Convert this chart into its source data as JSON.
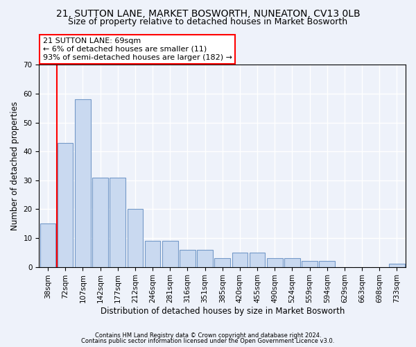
{
  "title1": "21, SUTTON LANE, MARKET BOSWORTH, NUNEATON, CV13 0LB",
  "title2": "Size of property relative to detached houses in Market Bosworth",
  "xlabel": "Distribution of detached houses by size in Market Bosworth",
  "ylabel": "Number of detached properties",
  "categories": [
    "38sqm",
    "72sqm",
    "107sqm",
    "142sqm",
    "177sqm",
    "212sqm",
    "246sqm",
    "281sqm",
    "316sqm",
    "351sqm",
    "385sqm",
    "420sqm",
    "455sqm",
    "490sqm",
    "524sqm",
    "559sqm",
    "594sqm",
    "629sqm",
    "663sqm",
    "698sqm",
    "733sqm"
  ],
  "values": [
    15,
    43,
    58,
    31,
    31,
    20,
    9,
    9,
    6,
    6,
    3,
    5,
    5,
    3,
    3,
    2,
    2,
    0,
    0,
    0,
    1
  ],
  "bar_color": "#c9d9f0",
  "bar_edge_color": "#7499c8",
  "annotation_text_line1": "21 SUTTON LANE: 69sqm",
  "annotation_text_line2": "← 6% of detached houses are smaller (11)",
  "annotation_text_line3": "93% of semi-detached houses are larger (182) →",
  "annotation_box_color": "white",
  "annotation_box_edge_color": "red",
  "ylim": [
    0,
    70
  ],
  "yticks": [
    0,
    10,
    20,
    30,
    40,
    50,
    60,
    70
  ],
  "footer1": "Contains HM Land Registry data © Crown copyright and database right 2024.",
  "footer2": "Contains public sector information licensed under the Open Government Licence v3.0.",
  "bg_color": "#eef2fa",
  "plot_bg_color": "#eef2fa",
  "grid_color": "white",
  "title1_fontsize": 10,
  "title2_fontsize": 9,
  "xlabel_fontsize": 8.5,
  "ylabel_fontsize": 8.5,
  "tick_fontsize": 7.5,
  "footer_fontsize": 6.0,
  "annotation_fontsize": 8.0
}
